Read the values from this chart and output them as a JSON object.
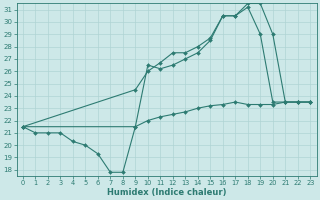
{
  "xlabel": "Humidex (Indice chaleur)",
  "bg_color": "#cde8e8",
  "line_color": "#2d7b72",
  "grid_color": "#b0d4d4",
  "xlim": [
    -0.5,
    23.5
  ],
  "ylim": [
    17.5,
    31.5
  ],
  "xticks": [
    0,
    1,
    2,
    3,
    4,
    5,
    6,
    7,
    8,
    9,
    10,
    11,
    12,
    13,
    14,
    15,
    16,
    17,
    18,
    19,
    20,
    21,
    22,
    23
  ],
  "yticks": [
    18,
    19,
    20,
    21,
    22,
    23,
    24,
    25,
    26,
    27,
    28,
    29,
    30,
    31
  ],
  "line1_x": [
    0,
    1,
    2,
    3,
    4,
    5,
    6,
    7,
    8,
    9,
    10,
    11,
    12,
    13,
    14,
    15,
    16,
    17,
    18,
    19,
    20,
    21,
    22,
    23
  ],
  "line1_y": [
    21.5,
    21.0,
    21.0,
    21.0,
    20.3,
    20.0,
    19.3,
    17.8,
    17.8,
    21.5,
    22.0,
    22.3,
    22.5,
    22.7,
    23.0,
    23.2,
    23.3,
    23.5,
    23.3,
    23.3,
    23.3,
    23.5,
    23.5,
    23.5
  ],
  "line2_x": [
    0,
    9,
    10,
    11,
    12,
    13,
    14,
    15,
    16,
    17,
    18,
    19,
    20,
    21,
    22,
    23
  ],
  "line2_y": [
    21.5,
    24.5,
    26.0,
    26.7,
    27.5,
    27.5,
    28.0,
    28.7,
    30.5,
    30.5,
    31.5,
    31.5,
    29.0,
    23.5,
    23.5,
    23.5
  ],
  "line3_x": [
    0,
    9,
    10,
    11,
    12,
    13,
    14,
    15,
    16,
    17,
    18,
    19,
    20,
    21,
    22,
    23
  ],
  "line3_y": [
    21.5,
    21.5,
    26.5,
    26.2,
    26.5,
    27.0,
    27.5,
    28.5,
    30.5,
    30.5,
    31.2,
    29.0,
    23.5,
    23.5,
    23.5,
    23.5
  ]
}
